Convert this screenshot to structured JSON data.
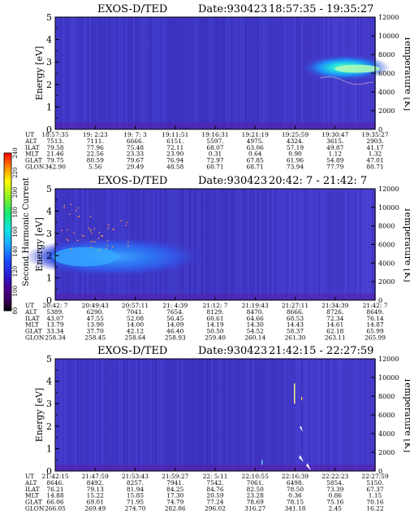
{
  "colorbar": {
    "label": "Second Harmonic Current",
    "ticks": [
      "80",
      "100",
      "120",
      "140",
      "160",
      "180",
      "200",
      "220",
      "240"
    ]
  },
  "chart_data": [
    {
      "type": "heatmap",
      "title": "EXOS-D/TED",
      "date_label": "Date:930423",
      "time_range": "18:57:35 - 19:35:27",
      "ylabel": "Energy [eV]",
      "ylim": [
        0,
        5
      ],
      "yticks": [
        "0",
        "1",
        "2",
        "3",
        "4",
        "5"
      ],
      "y2label": "Temperature [K]",
      "y2lim": [
        0,
        12000
      ],
      "y2ticks": [
        "0",
        "2000",
        "4000",
        "6000",
        "8000",
        "10000",
        "12000"
      ],
      "row_labels": [
        "UT",
        "ALT",
        "ILAT",
        "MLT",
        "GLAT",
        "GLON"
      ],
      "columns": [
        [
          "18:57:35",
          "7513.",
          "79.58",
          "21.46",
          "79.75",
          "342.90"
        ],
        [
          "19: 2:23",
          "7111.",
          "77.96",
          "22.56",
          "80.59",
          "5.56"
        ],
        [
          "19: 7: 3",
          "6666.",
          "75.48",
          "23.33",
          "79.67",
          "29.49"
        ],
        [
          "19:11:51",
          "6151.",
          "72.11",
          "23.90",
          "76.94",
          "48.58"
        ],
        [
          "19:16:31",
          "5597.",
          "68.07",
          "0.31",
          "72.97",
          "60.71"
        ],
        [
          "19:21:19",
          "4975.",
          "63.06",
          "0.64",
          "67.85",
          "68.71"
        ],
        [
          "19:25:59",
          "4324.",
          "57.19",
          "0.90",
          "61.96",
          "73.94"
        ],
        [
          "19:30:47",
          "3615.",
          "49.87",
          "1.12",
          "54.89",
          "77.79"
        ],
        [
          "19:35:27",
          "2903.",
          "41.17",
          "1.32",
          "47.01",
          "80.71"
        ]
      ]
    },
    {
      "type": "heatmap",
      "title": "EXOS-D/TED",
      "date_label": "Date:930423",
      "time_range": "20:42: 7 - 21:42: 7",
      "ylabel": "Energy [eV]",
      "ylim": [
        0,
        5
      ],
      "yticks": [
        "0",
        "1",
        "2",
        "3",
        "4",
        "5"
      ],
      "y2label": "Temperature [K]",
      "y2lim": [
        0,
        12000
      ],
      "y2ticks": [
        "0",
        "2000",
        "4000",
        "6000",
        "8000",
        "10000",
        "12000"
      ],
      "row_labels": [
        "UT",
        "ALT",
        "ILAT",
        "MLT",
        "GLAT",
        "GLON"
      ],
      "columns": [
        [
          "20:42: 7",
          "5389.",
          "43.07",
          "13.79",
          "33.34",
          "258.34"
        ],
        [
          "20:49:43",
          "6290.",
          "47.55",
          "13.90",
          "37.70",
          "258.45"
        ],
        [
          "20:57:11",
          "7041.",
          "52.08",
          "14.00",
          "42.12",
          "258.64"
        ],
        [
          "21: 4:39",
          "7654.",
          "56.45",
          "14.09",
          "46.40",
          "258.93"
        ],
        [
          "21:12: 7",
          "8129.",
          "60.61",
          "14.19",
          "50.50",
          "259.40"
        ],
        [
          "21:19:43",
          "8470.",
          "64.66",
          "14.30",
          "54.52",
          "260.14"
        ],
        [
          "21:27:11",
          "8666.",
          "68.53",
          "14.43",
          "58.37",
          "261.30"
        ],
        [
          "21:34:39",
          "8726.",
          "72.34",
          "14.61",
          "62.18",
          "263.11"
        ],
        [
          "21:42: 7",
          "8649.",
          "76.14",
          "14.87",
          "65.99",
          "265.99"
        ]
      ]
    },
    {
      "type": "heatmap",
      "title": "EXOS-D/TED",
      "date_label": "Date:930423",
      "time_range": "21:42:15 - 22:27:59",
      "ylabel": "Energy [eV]",
      "ylim": [
        0,
        5
      ],
      "yticks": [
        "0",
        "1",
        "2",
        "3",
        "4",
        "5"
      ],
      "y2label": "Temperature [K]",
      "y2lim": [
        0,
        12000
      ],
      "y2ticks": [
        "0",
        "2000",
        "4000",
        "6000",
        "8000",
        "10000",
        "12000"
      ],
      "row_labels": [
        "UT",
        "ALT",
        "ILAT",
        "MLT",
        "GLAT",
        "GLON"
      ],
      "columns": [
        [
          "21:42:15",
          "8646.",
          "76.21",
          "14.88",
          "66.06",
          "266.05"
        ],
        [
          "21:47:59",
          "8492.",
          "79.13",
          "15.22",
          "69.01",
          "269.49"
        ],
        [
          "21:53:43",
          "8257.",
          "81.94",
          "15.85",
          "71.95",
          "274.70"
        ],
        [
          "21:59:27",
          "7941.",
          "84.25",
          "17.30",
          "74.79",
          "282.86"
        ],
        [
          "22: 5:11",
          "7542.",
          "84.76",
          "20.59",
          "77.24",
          "296.02"
        ],
        [
          "22:10:55",
          "7061.",
          "82.50",
          "23.28",
          "78.69",
          "316.27"
        ],
        [
          "22:16:39",
          "6498.",
          "78.50",
          "0.36",
          "78.15",
          "341.18"
        ],
        [
          "22:22:23",
          "5854.",
          "73.39",
          "0.86",
          "75.16",
          "2.45"
        ],
        [
          "22:27:59",
          "5150.",
          "67.37",
          "1.15",
          "70.16",
          "16.22"
        ]
      ]
    }
  ]
}
